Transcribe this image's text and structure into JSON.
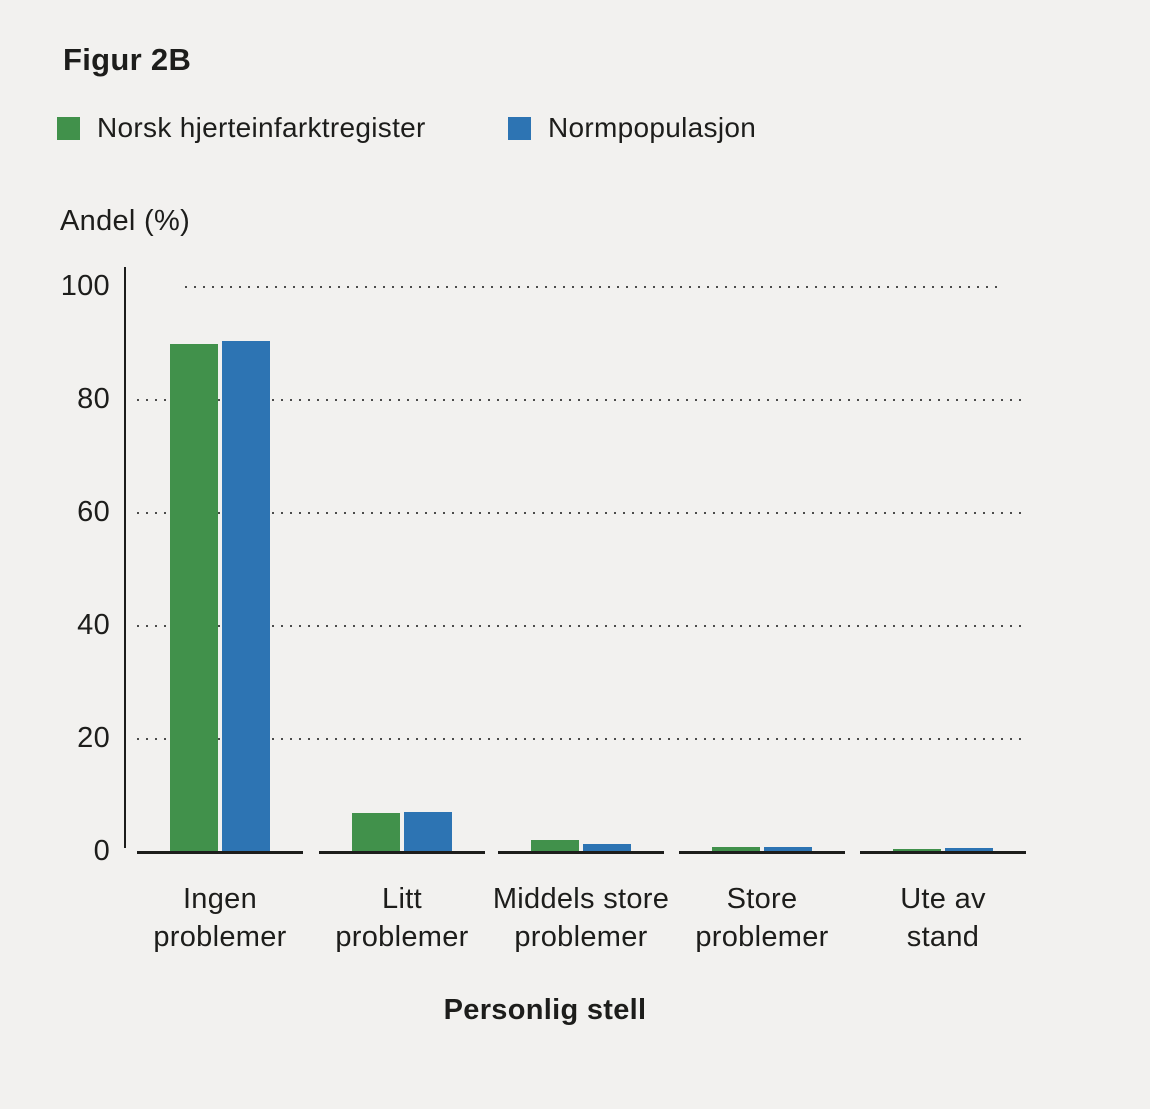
{
  "figure": {
    "title": "Figur 2B"
  },
  "legend": [
    {
      "label": "Norsk hjerteinfarktregister",
      "color": "#41914b"
    },
    {
      "label": "Normpopulasjon",
      "color": "#2d74b3"
    }
  ],
  "y_axis_label": "Andel (%)",
  "x_axis_title": "Personlig stell",
  "chart_data": {
    "type": "bar",
    "title": "Figur 2B",
    "categories": [
      "Ingen problemer",
      "Litt problemer",
      "Middels store problemer",
      "Store problemer",
      "Ute av stand"
    ],
    "category_lines": [
      [
        "Ingen",
        "problemer"
      ],
      [
        "Litt",
        "problemer"
      ],
      [
        "Middels store",
        "problemer"
      ],
      [
        "Store",
        "problemer"
      ],
      [
        "Ute av",
        "stand"
      ]
    ],
    "series": [
      {
        "name": "Norsk hjerteinfarktregister",
        "color": "#41914b",
        "values": [
          89.8,
          6.8,
          1.9,
          0.7,
          0.3
        ]
      },
      {
        "name": "Normpopulasjon",
        "color": "#2d74b3",
        "values": [
          90.2,
          6.9,
          1.2,
          0.7,
          0.5
        ]
      }
    ],
    "xlabel": "Personlig stell",
    "ylabel": "Andel (%)",
    "ylim": [
      0,
      100
    ],
    "yticks": [
      0,
      20,
      40,
      60,
      80,
      100
    ],
    "grid": "dotted-horizontal",
    "legend_position": "top"
  },
  "colors": {
    "background": "#f2f1ef",
    "text": "#1d1d1b",
    "axis": "#1d1d1b",
    "gridline": "#4b4b4b"
  }
}
